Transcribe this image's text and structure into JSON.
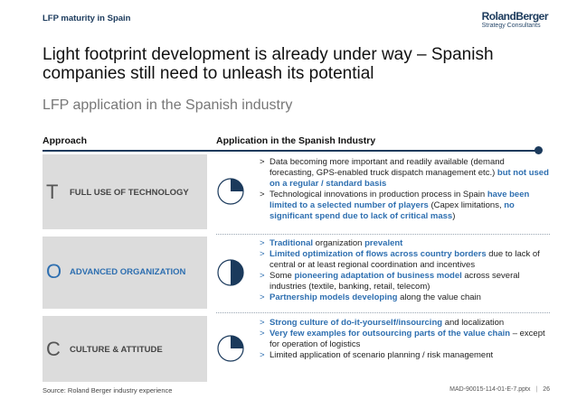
{
  "header": {
    "kicker": "LFP maturity in Spain",
    "logo_name": "RolandBerger",
    "logo_sub": "Strategy Consultants"
  },
  "title": "Light footprint development is already under way – Spanish companies still need to unleash its potential",
  "subtitle": "LFP application in the Spanish industry",
  "columns": {
    "left": "Approach",
    "right": "Application in the Spanish Industry"
  },
  "colors": {
    "navy": "#1b3a5c",
    "highlight": "#2e6fb0",
    "band": "#dcdcdc",
    "letter_blue": "#2e6fb0",
    "letter_gray": "#555555"
  },
  "rows": [
    {
      "letter": "T",
      "label": "FULL USE OF TECHNOLOGY",
      "pie_fraction": 0.25,
      "bullets": [
        [
          {
            "t": "Data becoming more important and readily available (demand forecasting, GPS-enabled truck dispatch management etc.) "
          },
          {
            "t": "but not used on a regular / standard basis",
            "h": true
          }
        ],
        [
          {
            "t": "Technological innovations in production process in Spain "
          },
          {
            "t": "have been limited to a selected number of players",
            "h": true
          },
          {
            "t": " (Capex limitations, "
          },
          {
            "t": "no significant spend due to lack of critical mass",
            "h": true
          },
          {
            "t": ")"
          }
        ]
      ]
    },
    {
      "letter": "O",
      "label": "ADVANCED ORGANIZATION",
      "pie_fraction": 0.5,
      "bullets": [
        [
          {
            "t": "Traditional",
            "h": true
          },
          {
            "t": " organization "
          },
          {
            "t": "prevalent",
            "h": true
          }
        ],
        [
          {
            "t": "Limited optimization of flows across country borders",
            "h": true
          },
          {
            "t": " due to lack of central or at least regional coordination and incentives"
          }
        ],
        [
          {
            "t": "Some "
          },
          {
            "t": "pioneering adaptation of business model",
            "h": true
          },
          {
            "t": " across several industries (textile, banking, retail, telecom)"
          }
        ],
        [
          {
            "t": "Partnership models developing",
            "h": true
          },
          {
            "t": " along the value chain"
          }
        ]
      ]
    },
    {
      "letter": "C",
      "label": "CULTURE & ATTITUDE",
      "pie_fraction": 0.25,
      "bullets": [
        [
          {
            "t": "Strong culture of do-it-yourself/insourcing",
            "h": true
          },
          {
            "t": " and localization"
          }
        ],
        [
          {
            "t": "Very few examples for outsourcing parts of the value chain",
            "h": true
          },
          {
            "t": " – except for operation of logistics"
          }
        ],
        [
          {
            "t": "Limited application of scenario planning / risk management"
          }
        ]
      ]
    }
  ],
  "footer": {
    "source": "Source: Roland Berger industry experience",
    "doc_id": "MAD-90015-114-01-E-7.pptx",
    "page": "26"
  }
}
